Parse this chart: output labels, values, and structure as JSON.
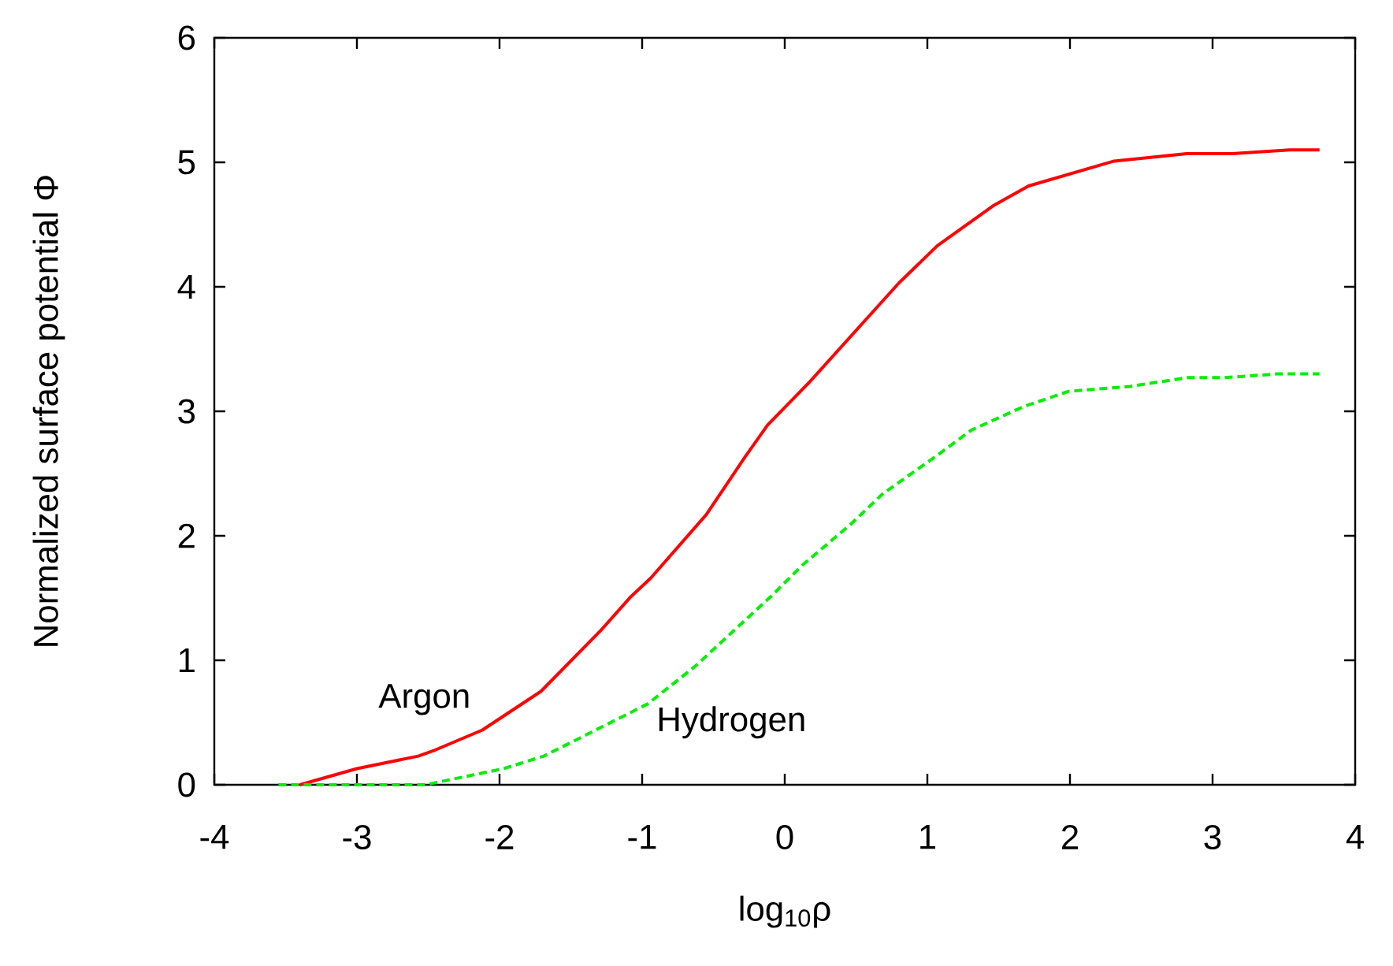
{
  "chart_data": {
    "type": "line",
    "xlabel": "log$_{10}$ρ",
    "ylabel": "Normalized surface potential Φ",
    "xlim": [
      -4,
      4
    ],
    "ylim": [
      0,
      6
    ],
    "xticks": [
      -4,
      -3,
      -2,
      -1,
      0,
      1,
      2,
      3,
      4
    ],
    "yticks": [
      0,
      1,
      2,
      3,
      4,
      5,
      6
    ],
    "grid": false,
    "series": [
      {
        "name": "Argon",
        "color": "#ff0000",
        "line_style": "solid",
        "x": [
          -3.4,
          -3.0,
          -2.57,
          -2.45,
          -2.12,
          -1.71,
          -1.29,
          -1.08,
          -0.94,
          -0.55,
          -0.28,
          -0.12,
          0.17,
          0.8,
          1.07,
          1.46,
          1.71,
          2.31,
          2.82,
          3.14,
          3.54,
          3.75
        ],
        "values": [
          0,
          0.13,
          0.23,
          0.28,
          0.44,
          0.75,
          1.24,
          1.51,
          1.66,
          2.17,
          2.63,
          2.89,
          3.23,
          4.03,
          4.33,
          4.65,
          4.81,
          5.01,
          5.07,
          5.07,
          5.1,
          5.1
        ]
      },
      {
        "name": "Hydrogen",
        "color": "#00ee00",
        "line_style": "dashed",
        "x": [
          -3.55,
          -2.52,
          -1.97,
          -1.69,
          -0.96,
          -0.63,
          -0.09,
          0.13,
          0.46,
          0.69,
          1.05,
          1.31,
          1.68,
          1.99,
          2.42,
          2.82,
          3.08,
          3.45,
          3.75
        ],
        "values": [
          0,
          0,
          0.13,
          0.23,
          0.65,
          0.95,
          1.52,
          1.77,
          2.09,
          2.34,
          2.63,
          2.85,
          3.04,
          3.16,
          3.2,
          3.27,
          3.27,
          3.3,
          3.3
        ]
      }
    ]
  }
}
